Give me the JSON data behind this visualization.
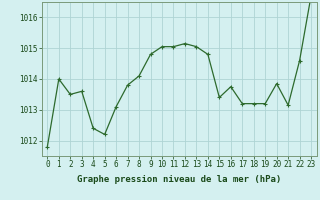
{
  "x": [
    0,
    1,
    2,
    3,
    4,
    5,
    6,
    7,
    8,
    9,
    10,
    11,
    12,
    13,
    14,
    15,
    16,
    17,
    18,
    19,
    20,
    21,
    22,
    23
  ],
  "y": [
    1011.8,
    1014.0,
    1013.5,
    1013.6,
    1012.4,
    1012.2,
    1013.1,
    1013.8,
    1014.1,
    1014.8,
    1015.05,
    1015.05,
    1015.15,
    1015.05,
    1014.8,
    1013.4,
    1013.75,
    1013.2,
    1013.2,
    1013.2,
    1013.85,
    1013.15,
    1014.6,
    1016.7
  ],
  "line_color": "#2d6a2d",
  "marker": "+",
  "marker_size": 3,
  "marker_linewidth": 0.8,
  "line_width": 0.9,
  "bg_color": "#d4f0f0",
  "grid_color": "#aed4d4",
  "xlabel": "Graphe pression niveau de la mer (hPa)",
  "xlabel_fontsize": 6.5,
  "tick_fontsize": 5.5,
  "ylim": [
    1011.5,
    1016.5
  ],
  "yticks": [
    1012,
    1013,
    1014,
    1015,
    1016
  ],
  "text_color": "#1a4a1a",
  "spine_color": "#7a9a7a"
}
